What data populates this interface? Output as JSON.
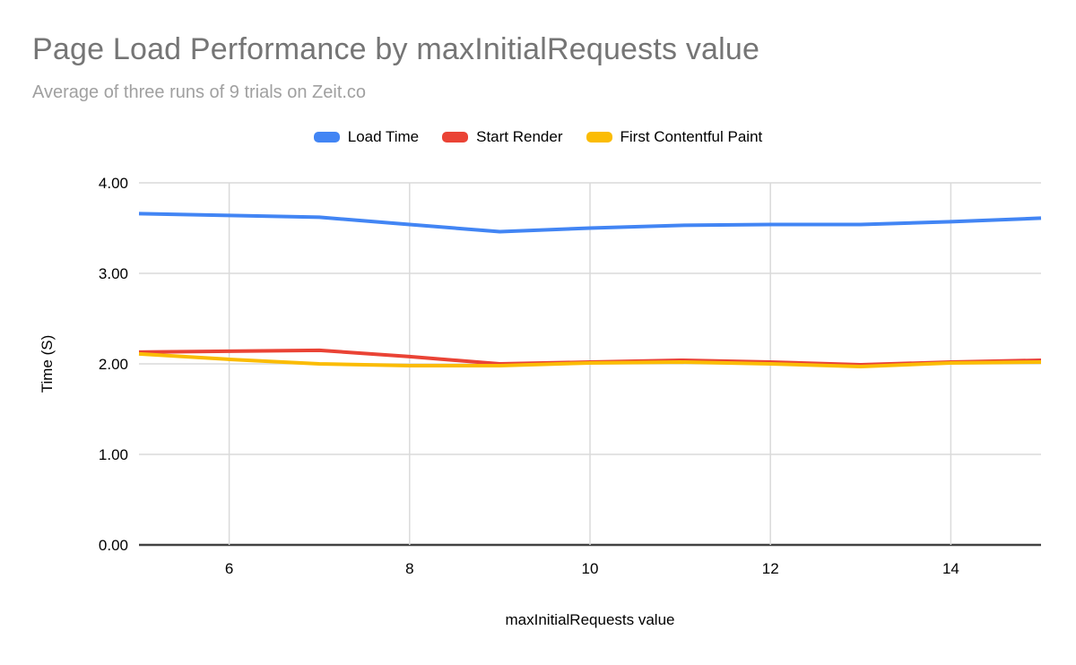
{
  "chart_data": {
    "type": "line",
    "title": "Page Load Performance by maxInitialRequests value",
    "subtitle": "Average of three runs of 9 trials on Zeit.co",
    "xlabel": "maxInitialRequests value",
    "ylabel": "Time (S)",
    "x": [
      5,
      6,
      7,
      8,
      9,
      10,
      11,
      12,
      13,
      14,
      15
    ],
    "x_ticks": [
      6,
      8,
      10,
      12,
      14
    ],
    "xlim": [
      5,
      15
    ],
    "y_ticks": [
      "0.00",
      "1.00",
      "2.00",
      "3.00",
      "4.00"
    ],
    "ylim": [
      0,
      4
    ],
    "grid": true,
    "legend_position": "top",
    "series": [
      {
        "name": "Load Time",
        "color": "#4285F4",
        "values": [
          3.66,
          3.64,
          3.62,
          3.54,
          3.46,
          3.5,
          3.53,
          3.54,
          3.54,
          3.57,
          3.61
        ]
      },
      {
        "name": "Start Render",
        "color": "#EA4335",
        "values": [
          2.13,
          2.14,
          2.15,
          2.08,
          2.0,
          2.02,
          2.04,
          2.02,
          1.99,
          2.02,
          2.04
        ]
      },
      {
        "name": "First Contentful Paint",
        "color": "#FBBC04",
        "values": [
          2.11,
          2.05,
          2.0,
          1.98,
          1.98,
          2.01,
          2.02,
          2.0,
          1.97,
          2.01,
          2.02
        ]
      }
    ],
    "style": {
      "title_color": "#757575",
      "subtitle_color": "#a0a0a0",
      "axis_text_color": "#000000",
      "gridline_color": "#dadada",
      "baseline_color": "#424242",
      "background": "#ffffff"
    }
  }
}
